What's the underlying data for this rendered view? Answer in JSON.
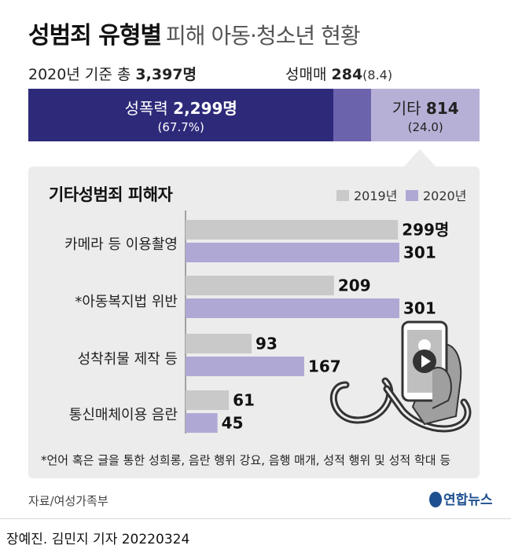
{
  "header": {
    "title_main": "성범죄 유형별",
    "title_sub": "피해 아동·청소년 현황",
    "total_prefix": "2020년 기준 총",
    "total_value": "3,397명"
  },
  "stacked_bar": {
    "segments": [
      {
        "label": "성폭력",
        "value": 2299,
        "value_text": "2,299명",
        "pct_text": "(67.7%)",
        "color": "#2e2a7a"
      },
      {
        "label": "성매매",
        "value": 284,
        "value_text": "284",
        "pct_text": "(8.4)",
        "color": "#6c63ad"
      },
      {
        "label": "기타",
        "value": 814,
        "value_text": "814",
        "pct_text": "(24.0)",
        "color": "#b7b0d6"
      }
    ]
  },
  "chart_data": {
    "type": "bar",
    "title": "기타성범죄 피해자",
    "categories": [
      "카메라 등 이용촬영",
      "*아동복지법 위반",
      "성착취물 제작 등",
      "통신매체이용 음란"
    ],
    "series": [
      {
        "name": "2019년",
        "values": [
          299,
          209,
          93,
          61
        ],
        "color": "#c9c9c9"
      },
      {
        "name": "2020년",
        "values": [
          301,
          301,
          167,
          45
        ],
        "color": "#b0a8d4"
      }
    ],
    "value_labels": [
      [
        "299명",
        "209",
        "93",
        "61"
      ],
      [
        "301",
        "301",
        "167",
        "45"
      ]
    ],
    "xlim": [
      0,
      301
    ]
  },
  "legend": {
    "y2019": "2019년",
    "y2020": "2020년"
  },
  "note": "*언어 혹은 글을 통한 성희롱, 음란 행위 강요, 음행 매개, 성적 행위 및 성적 학대 등",
  "source": "자료/여성가족부",
  "logo_text": "연합뉴스",
  "byline": "장예진. 김민지 기자  20220324"
}
